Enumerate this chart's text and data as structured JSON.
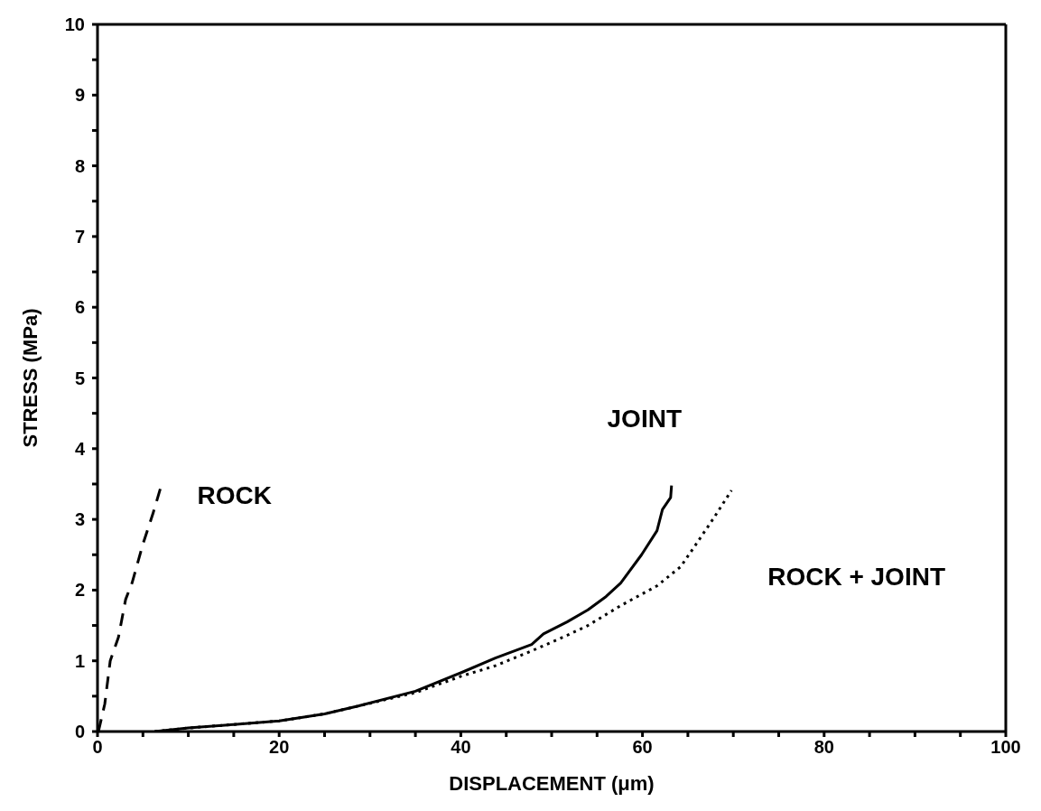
{
  "chart_data": {
    "type": "line",
    "xlabel": "DISPLACEMENT    (μm)",
    "ylabel": "STRESS    (MPa)",
    "xlim": [
      0,
      100
    ],
    "ylim": [
      0,
      10
    ],
    "xticks": [
      0,
      {
        "value": 5,
        "label": null
      },
      20,
      {
        "value": 10,
        "label": null
      },
      {
        "value": 15,
        "label": null
      },
      {
        "value": 25,
        "label": null
      },
      {
        "value": 30,
        "label": null
      },
      {
        "value": 35,
        "label": null
      },
      40,
      {
        "value": 45,
        "label": null
      },
      {
        "value": 50,
        "label": null
      },
      {
        "value": 55,
        "label": null
      },
      60,
      {
        "value": 65,
        "label": null
      },
      {
        "value": 70,
        "label": null
      },
      {
        "value": 75,
        "label": null
      },
      80,
      {
        "value": 85,
        "label": null
      },
      {
        "value": 90,
        "label": null
      },
      {
        "value": 95,
        "label": null
      },
      100
    ],
    "yticks": [
      0,
      {
        "value": 0.5,
        "label": null
      },
      1,
      {
        "value": 1.5,
        "label": null
      },
      2,
      {
        "value": 2.5,
        "label": null
      },
      3,
      {
        "value": 3.5,
        "label": null
      },
      4,
      {
        "value": 4.5,
        "label": null
      },
      5,
      {
        "value": 5.5,
        "label": null
      },
      6,
      {
        "value": 6.5,
        "label": null
      },
      7,
      {
        "value": 7.5,
        "label": null
      },
      8,
      {
        "value": 8.5,
        "label": null
      },
      9,
      {
        "value": 9.5,
        "label": null
      },
      10
    ],
    "grid": false,
    "legend": false,
    "marker": "none",
    "series": [
      {
        "name": "ROCK",
        "color": "#000000",
        "line_style": "dashed",
        "x": [
          0.1,
          0.8,
          1.4,
          2.3,
          3.1,
          3.8,
          5.0,
          6.1,
          7.0
        ],
        "values": [
          0,
          0.39,
          1.0,
          1.33,
          1.87,
          2.1,
          2.65,
          3.08,
          3.47
        ]
      },
      {
        "name": "JOINT",
        "color": "#000000",
        "line_style": "solid",
        "x": [
          6.3,
          10,
          15,
          20,
          25,
          28.7,
          35,
          40,
          43.8,
          47.8,
          49.1,
          51.7,
          54.0,
          56.0,
          57.6,
          59.9,
          61.6,
          62.2,
          63.1,
          63.2
        ],
        "values": [
          0,
          0.05,
          0.1,
          0.15,
          0.25,
          0.36,
          0.57,
          0.83,
          1.04,
          1.23,
          1.38,
          1.55,
          1.72,
          1.91,
          2.1,
          2.5,
          2.84,
          3.14,
          3.31,
          3.48
        ]
      },
      {
        "name": "ROCK + JOINT",
        "color": "#000000",
        "line_style": "dotted",
        "x": [
          6.3,
          10,
          15,
          20,
          25,
          28.7,
          35,
          40,
          43.8,
          47.8,
          51.7,
          54.0,
          57.6,
          61.6,
          64.2,
          65.8,
          67.8,
          69.8
        ],
        "values": [
          0,
          0.05,
          0.1,
          0.15,
          0.25,
          0.36,
          0.55,
          0.78,
          0.93,
          1.14,
          1.36,
          1.5,
          1.78,
          2.06,
          2.33,
          2.63,
          3.01,
          3.41
        ]
      }
    ]
  }
}
